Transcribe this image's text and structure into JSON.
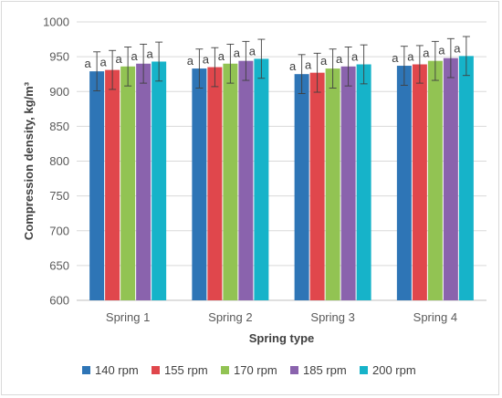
{
  "chart_data": {
    "type": "bar",
    "categories": [
      "Spring 1",
      "Spring 2",
      "Spring 3",
      "Spring 4"
    ],
    "series": [
      {
        "name": "140 rpm",
        "color": "#2e75b6",
        "values": [
          929,
          933,
          925,
          937
        ],
        "errors": [
          28,
          28,
          28,
          28
        ],
        "labels": [
          "a",
          "a",
          "a",
          "a"
        ]
      },
      {
        "name": "155 rpm",
        "color": "#e0474c",
        "values": [
          931,
          935,
          927,
          939
        ],
        "errors": [
          28,
          28,
          28,
          27
        ],
        "labels": [
          "a",
          "a",
          "a",
          "a"
        ]
      },
      {
        "name": "170 rpm",
        "color": "#92c353",
        "values": [
          936,
          940,
          933,
          944
        ],
        "errors": [
          28,
          28,
          28,
          28
        ],
        "labels": [
          "a",
          "a",
          "a",
          "a"
        ]
      },
      {
        "name": "185 rpm",
        "color": "#8a63ad",
        "values": [
          940,
          944,
          936,
          948
        ],
        "errors": [
          28,
          28,
          28,
          28
        ],
        "labels": [
          "a",
          "a",
          "a",
          "a"
        ]
      },
      {
        "name": "200 rpm",
        "color": "#16b3c9",
        "values": [
          943,
          947,
          939,
          951
        ],
        "errors": [
          28,
          28,
          28,
          28
        ],
        "labels": [
          "a",
          "a",
          "a",
          "a"
        ]
      }
    ],
    "xlabel": "Spring type",
    "ylabel": "Compression density, kg/m³",
    "ylim": [
      600,
      1000
    ],
    "yticks": [
      600,
      650,
      700,
      750,
      800,
      850,
      900,
      950,
      1000
    ],
    "grid": "horizontal",
    "legend": "bottom"
  }
}
